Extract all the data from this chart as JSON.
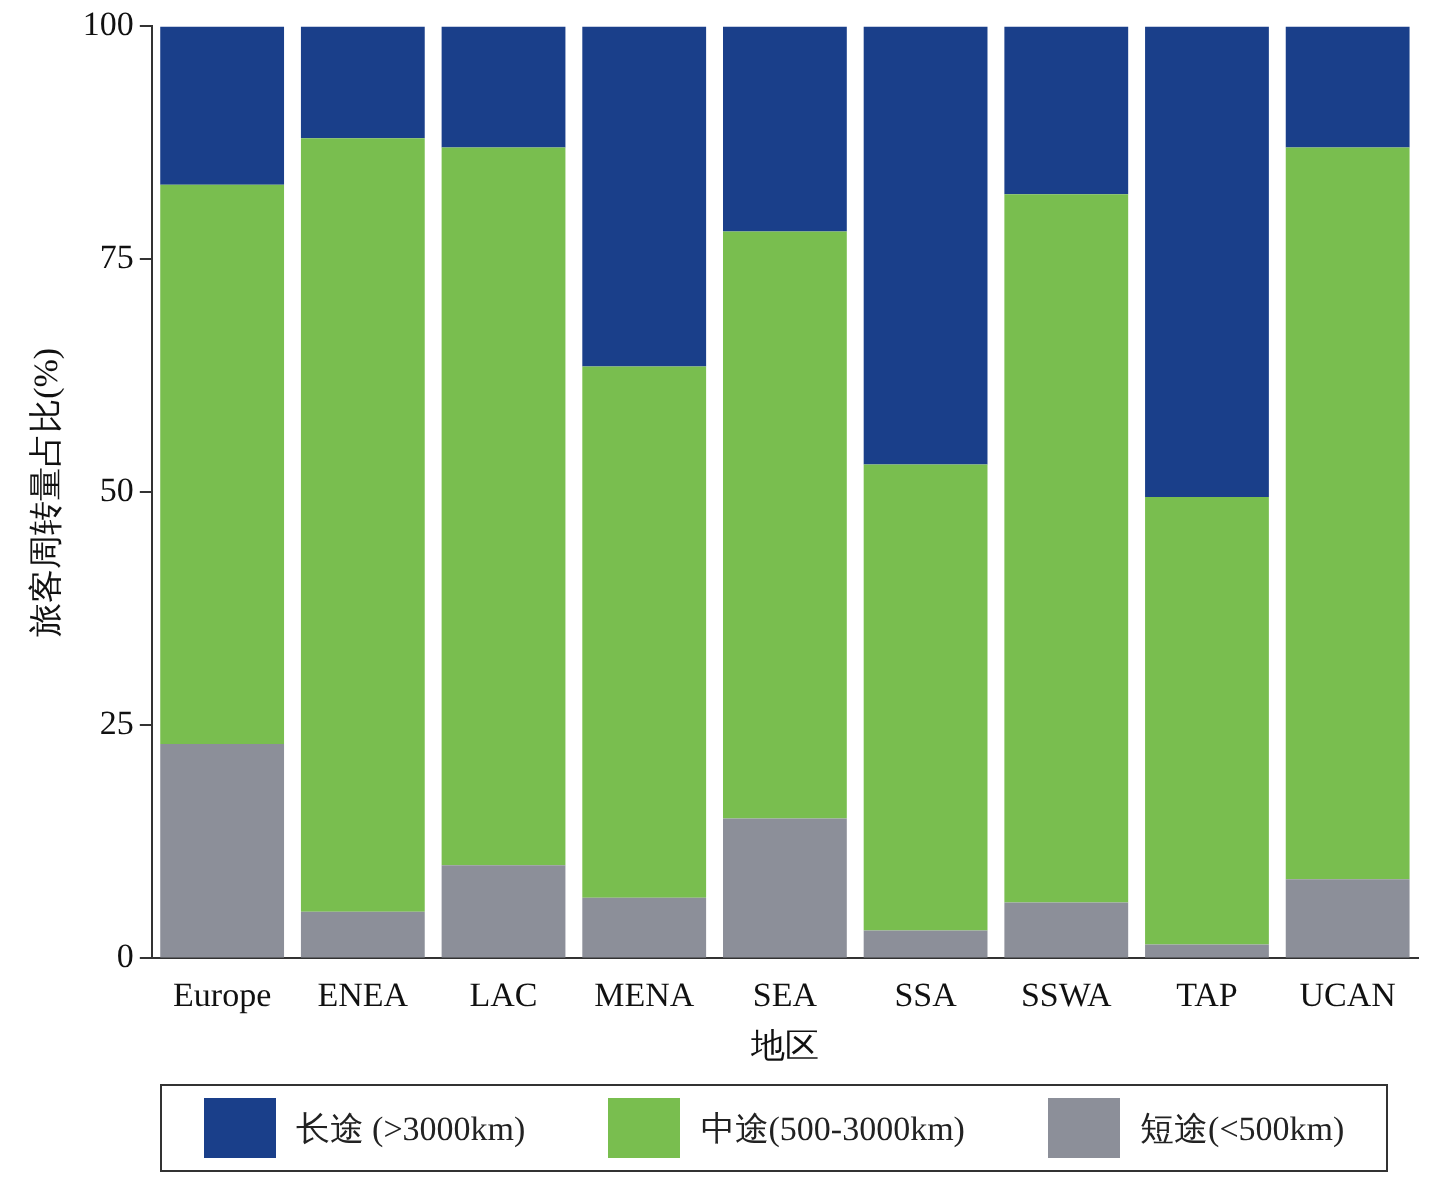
{
  "chart_data": {
    "type": "bar",
    "stacked": true,
    "xlabel": "地区",
    "ylabel": "旅客周转量占比(%)",
    "categories": [
      "Europe",
      "ENEA",
      "LAC",
      "MENA",
      "SEA",
      "SSA",
      "SSWA",
      "TAP",
      "UCAN"
    ],
    "series": [
      {
        "name": "短途(<500km)",
        "color": "#8c8f99",
        "values": [
          23,
          5,
          10,
          6.5,
          15,
          3,
          6,
          1.5,
          8.5
        ]
      },
      {
        "name": "中途(500-3000km)",
        "color": "#79be4f",
        "values": [
          60,
          83,
          77,
          57,
          63,
          50,
          76,
          48,
          78.5
        ]
      },
      {
        "name": "长途 (>3000km)",
        "color": "#1a3f8a",
        "values": [
          17,
          12,
          13,
          36.5,
          22,
          47,
          18,
          50.5,
          13
        ]
      }
    ],
    "ylim": [
      0,
      100
    ],
    "yticks": [
      0,
      25,
      50,
      75,
      100
    ],
    "grid": false,
    "legend": "bottom"
  }
}
